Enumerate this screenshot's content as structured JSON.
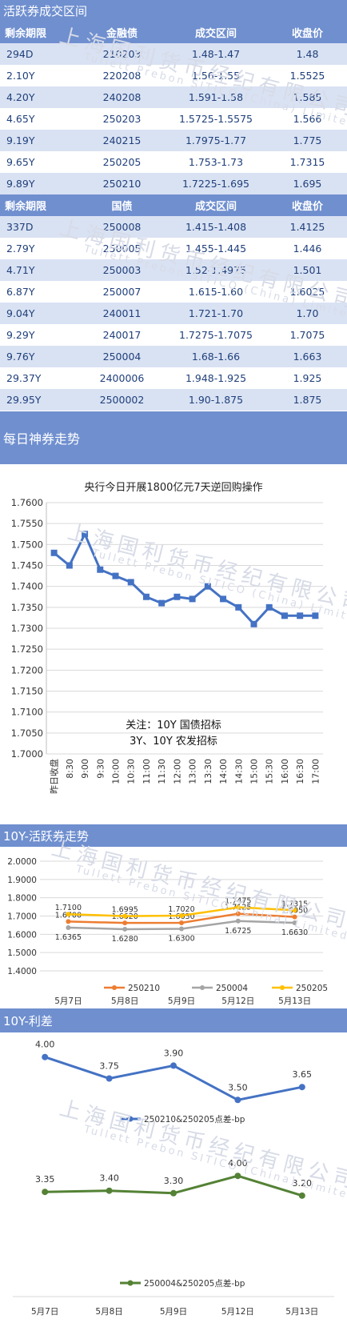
{
  "table1": {
    "title": "活跃券成交区间",
    "headers": [
      "剩余期限",
      "金融债",
      "成交区间",
      "收盘价"
    ],
    "rows": [
      [
        "294D",
        "210203",
        "1.48-1.47",
        "1.48"
      ],
      [
        "2.10Y",
        "220208",
        "1.56-1.55",
        "1.5525"
      ],
      [
        "4.20Y",
        "240208",
        "1.591-1.58",
        "1.585"
      ],
      [
        "4.65Y",
        "250203",
        "1.5725-1.5575",
        "1.566"
      ],
      [
        "9.19Y",
        "240215",
        "1.7975-1.77",
        "1.775"
      ],
      [
        "9.65Y",
        "250205",
        "1.753-1.73",
        "1.7315"
      ],
      [
        "9.89Y",
        "250210",
        "1.7225-1.695",
        "1.695"
      ]
    ]
  },
  "table2": {
    "headers": [
      "剩余期限",
      "国债",
      "成交区间",
      "收盘价"
    ],
    "rows": [
      [
        "337D",
        "250008",
        "1.415-1.408",
        "1.4125"
      ],
      [
        "2.79Y",
        "250005",
        "1.455-1.445",
        "1.446"
      ],
      [
        "4.71Y",
        "250003",
        "1.52-1.4975",
        "1.501"
      ],
      [
        "6.87Y",
        "250007",
        "1.615-1.60",
        "1.6025"
      ],
      [
        "9.04Y",
        "240011",
        "1.721-1.70",
        "1.70"
      ],
      [
        "9.29Y",
        "240017",
        "1.7275-1.7075",
        "1.7075"
      ],
      [
        "9.76Y",
        "250004",
        "1.68-1.66",
        "1.663"
      ],
      [
        "29.37Y",
        "2400006",
        "1.948-1.925",
        "1.925"
      ],
      [
        "29.95Y",
        "2500002",
        "1.90-1.875",
        "1.875"
      ]
    ]
  },
  "watermark": {
    "cn": "上海国利货币经纪有限公司",
    "en": "Tullett Prebon SITICO (China) Limited"
  },
  "chart_data": [
    {
      "section_title": "每日神券走势",
      "type": "line",
      "title": "央行今日开展1800亿元7天逆回购操作",
      "annotation": [
        "关注：10Y 国债招标",
        "3Y、10Y 农发招标"
      ],
      "categories": [
        "昨日收盘",
        "8:30",
        "9:00",
        "9:30",
        "10:00",
        "10:30",
        "11:00",
        "11:30",
        "12:00",
        "13:00",
        "13:30",
        "14:00",
        "14:30",
        "15:00",
        "15:30",
        "16:00",
        "16:30",
        "17:00"
      ],
      "values": [
        1.748,
        1.745,
        1.7525,
        1.744,
        1.7425,
        1.741,
        1.7375,
        1.736,
        1.7375,
        1.737,
        1.74,
        1.737,
        1.735,
        1.731,
        1.735,
        1.733,
        1.733,
        1.733
      ],
      "ylim": [
        1.7,
        1.76
      ],
      "yticks": [
        "1.7600",
        "1.7550",
        "1.7500",
        "1.7450",
        "1.7400",
        "1.7350",
        "1.7300",
        "1.7250",
        "1.7200",
        "1.7150",
        "1.7100",
        "1.7050",
        "1.7000"
      ],
      "color": "#4472c4",
      "grid": true
    },
    {
      "section_title": "10Y-活跃券走势",
      "type": "line",
      "categories": [
        "5月7日",
        "5月8日",
        "5月9日",
        "5月12日",
        "5月13日"
      ],
      "series": [
        {
          "name": "250210",
          "color": "#ed7d31",
          "values": [
            1.67,
            1.662,
            1.663,
            1.7125,
            1.695
          ],
          "labels": [
            "1.6700",
            "1.6620",
            "1.6630",
            "1.7125",
            "1.6950"
          ]
        },
        {
          "name": "250004",
          "color": "#a5a5a5",
          "values": [
            1.6365,
            1.628,
            1.63,
            1.6725,
            1.663
          ],
          "labels": [
            "1.6365",
            "1.6280",
            "1.6300",
            "1.6725",
            "1.6630"
          ]
        },
        {
          "name": "250205",
          "color": "#ffc000",
          "values": [
            1.71,
            1.6995,
            1.702,
            1.7475,
            1.7315
          ],
          "labels": [
            "1.7100",
            "1.6995",
            "1.7020",
            "1.7475",
            "1.7315"
          ]
        }
      ],
      "ylim": [
        1.4,
        2.0
      ],
      "yticks": [
        "2.0000",
        "1.9000",
        "1.8000",
        "1.7000",
        "1.6000",
        "1.5000",
        "1.4000"
      ],
      "grid": true,
      "legend": "bottom"
    },
    {
      "section_title": "10Y-利差",
      "type": "line",
      "categories": [
        "5月7日",
        "5月8日",
        "5月9日",
        "5月12日",
        "5月13日"
      ],
      "series": [
        {
          "name": "250210&250205点差-bp",
          "color": "#4472c4",
          "values": [
            4.0,
            3.75,
            3.9,
            3.5,
            3.65
          ],
          "labels": [
            "4.00",
            "3.75",
            "3.90",
            "3.50",
            "3.65"
          ]
        },
        {
          "name": "250004&250205点差-bp",
          "color": "#548235",
          "values": [
            3.35,
            3.4,
            3.3,
            4.0,
            3.2
          ],
          "labels": [
            "3.35",
            "3.40",
            "3.30",
            "4.00",
            "3.20"
          ]
        }
      ],
      "legend": "bottom"
    }
  ]
}
